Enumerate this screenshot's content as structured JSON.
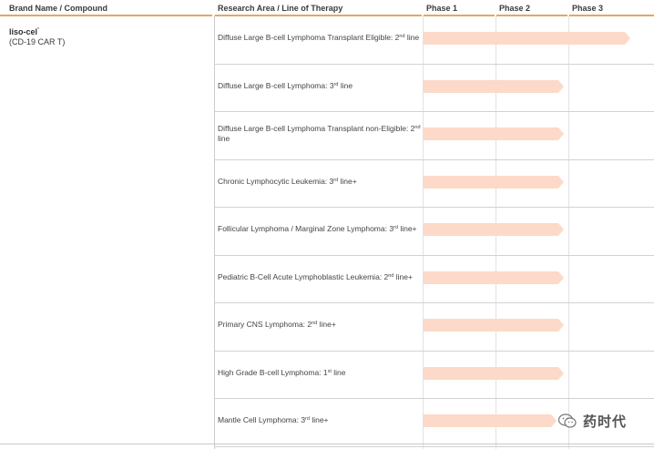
{
  "header": {
    "col_compound": "Brand Name / Compound",
    "col_indication": "Research Area / Line of Therapy",
    "phase1": "Phase 1",
    "phase2": "Phase 2",
    "phase3": "Phase 3"
  },
  "compound": {
    "name": "liso-cel",
    "mark": "*",
    "subtitle": "(CD-19 CAR T)"
  },
  "rows": [
    {
      "pre": "Diffuse Large B-cell Lymphoma Transplant Eligible: 2",
      "sup": "nd",
      "post": " line",
      "phase_reached": 3
    },
    {
      "pre": "Diffuse Large B-cell Lymphoma: 3",
      "sup": "rd",
      "post": " line",
      "phase_reached": 2
    },
    {
      "pre": "Diffuse Large B-cell Lymphoma Transplant non-Eligible: 2",
      "sup": "nd",
      "post": " line",
      "phase_reached": 2
    },
    {
      "pre": "Chronic Lymphocytic Leukemia: 3",
      "sup": "rd",
      "post": " line+",
      "phase_reached": 2
    },
    {
      "pre": "Follicular Lymphoma / Marginal Zone Lymphoma: 3",
      "sup": "rd",
      "post": " line+",
      "phase_reached": 2
    },
    {
      "pre": "Pediatric B-Cell Acute Lymphoblastic Leukemia: 2",
      "sup": "nd",
      "post": " line+",
      "phase_reached": 2
    },
    {
      "pre": "Primary CNS Lymphoma: 2",
      "sup": "nd",
      "post": " line+",
      "phase_reached": 2
    },
    {
      "pre": "High Grade B-cell Lymphoma: 1",
      "sup": "st",
      "post": " line",
      "phase_reached": 2
    },
    {
      "pre": "Mantle Cell Lymphoma: 3",
      "sup": "rd",
      "post": " line+",
      "phase_reached": 1.9
    }
  ],
  "watermark": {
    "icon": "wechat-icon",
    "text": "药时代"
  },
  "colors": {
    "bar": "#fdd9c9",
    "header_rule": "#e0a86a"
  }
}
